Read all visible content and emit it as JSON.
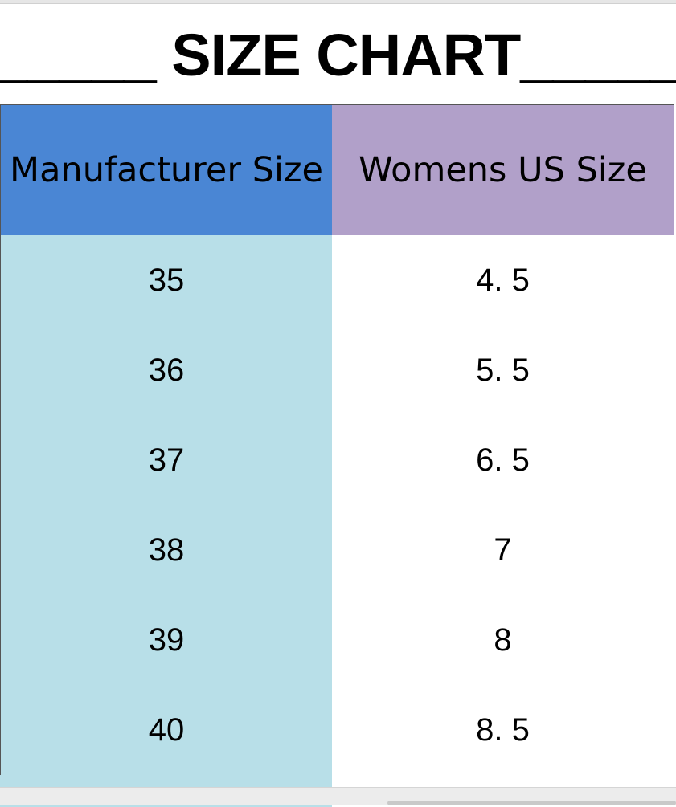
{
  "header": {
    "title": "_____ SIZE CHART_____"
  },
  "table": {
    "columns": [
      "Manufacturer Size",
      "Womens US Size"
    ],
    "rows": [
      [
        "35",
        "4. 5"
      ],
      [
        "36",
        "5. 5"
      ],
      [
        "37",
        "6. 5"
      ],
      [
        "38",
        "7"
      ],
      [
        "39",
        "8"
      ],
      [
        "40",
        "8. 5"
      ]
    ]
  }
}
